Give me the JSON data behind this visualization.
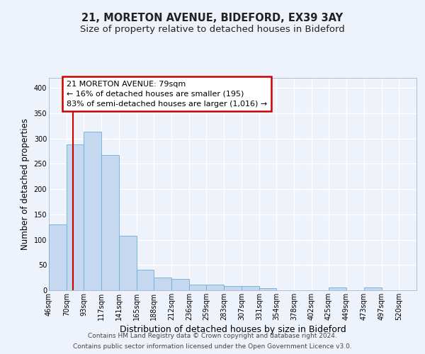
{
  "title": "21, MORETON AVENUE, BIDEFORD, EX39 3AY",
  "subtitle": "Size of property relative to detached houses in Bideford",
  "xlabel": "Distribution of detached houses by size in Bideford",
  "ylabel": "Number of detached properties",
  "bar_labels": [
    "46sqm",
    "70sqm",
    "93sqm",
    "117sqm",
    "141sqm",
    "165sqm",
    "188sqm",
    "212sqm",
    "236sqm",
    "259sqm",
    "283sqm",
    "307sqm",
    "331sqm",
    "354sqm",
    "378sqm",
    "402sqm",
    "425sqm",
    "449sqm",
    "473sqm",
    "497sqm",
    "520sqm"
  ],
  "bar_values": [
    130,
    288,
    313,
    268,
    108,
    41,
    25,
    22,
    11,
    11,
    9,
    9,
    4,
    0,
    0,
    0,
    5,
    0,
    5,
    0,
    0
  ],
  "bar_color": "#c5d8f0",
  "bar_edgecolor": "#6aaed6",
  "bar_left_edges": [
    46,
    70,
    93,
    117,
    141,
    165,
    188,
    212,
    236,
    259,
    283,
    307,
    331,
    354,
    378,
    402,
    425,
    449,
    473,
    497,
    520
  ],
  "bin_widths": [
    24,
    23,
    24,
    24,
    24,
    23,
    24,
    24,
    23,
    24,
    24,
    24,
    23,
    24,
    24,
    23,
    24,
    24,
    24,
    23,
    24
  ],
  "vline_x": 79,
  "vline_color": "#cc0000",
  "ylim": [
    0,
    420
  ],
  "yticks": [
    0,
    50,
    100,
    150,
    200,
    250,
    300,
    350,
    400
  ],
  "annotation_text_line1": "21 MORETON AVENUE: 79sqm",
  "annotation_text_line2": "← 16% of detached houses are smaller (195)",
  "annotation_text_line3": "83% of semi-detached houses are larger (1,016) →",
  "footer_line1": "Contains HM Land Registry data © Crown copyright and database right 2024.",
  "footer_line2": "Contains public sector information licensed under the Open Government Licence v3.0.",
  "background_color": "#eef2fb",
  "plot_bg_color": "#eef2fb",
  "grid_color": "#ffffff",
  "title_fontsize": 10.5,
  "subtitle_fontsize": 9.5,
  "xlabel_fontsize": 9,
  "ylabel_fontsize": 8.5,
  "tick_fontsize": 7,
  "annotation_fontsize": 8,
  "footer_fontsize": 6.5
}
